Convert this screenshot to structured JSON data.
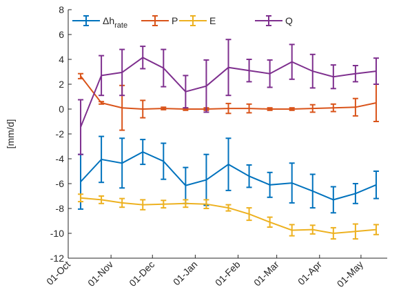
{
  "chart_data": {
    "type": "errorbar-line",
    "y_label": "[mm/d]",
    "xlim": [
      0,
      231
    ],
    "xticks": [
      {
        "value": 0,
        "label": "01-Oct"
      },
      {
        "value": 31,
        "label": "01-Nov"
      },
      {
        "value": 61,
        "label": "01-Dec"
      },
      {
        "value": 92,
        "label": "01-Jan"
      },
      {
        "value": 123,
        "label": "01-Feb"
      },
      {
        "value": 151,
        "label": "01-Mar"
      },
      {
        "value": 182,
        "label": "01-Apr"
      },
      {
        "value": 212,
        "label": "01-May"
      }
    ],
    "ylim": [
      -12,
      8
    ],
    "yticks": [
      -12,
      -10,
      -8,
      -6,
      -4,
      -2,
      0,
      2,
      4,
      6,
      8
    ],
    "x": [
      9,
      24,
      39,
      54,
      69,
      85,
      100,
      116,
      131,
      146,
      162,
      177,
      192,
      208,
      223
    ],
    "series": [
      {
        "name": "Δh",
        "name_sub": "rate",
        "color": "#0072BD",
        "values": [
          -5.85,
          -4.05,
          -4.35,
          -3.45,
          -4.2,
          -6.15,
          -5.7,
          -4.45,
          -5.4,
          -6.1,
          -5.95,
          -6.6,
          -7.3,
          -6.8,
          -6.1
        ],
        "errors": [
          2.2,
          1.85,
          2.0,
          1.0,
          1.45,
          1.45,
          2.05,
          2.1,
          0.9,
          1.0,
          1.6,
          1.35,
          1.05,
          0.8,
          1.1
        ]
      },
      {
        "name": "P",
        "color": "#D95319",
        "values": [
          2.65,
          0.5,
          0.1,
          0.0,
          0.05,
          0.0,
          0.0,
          0.05,
          0.05,
          0.0,
          0.0,
          0.05,
          0.1,
          0.15,
          0.5
        ],
        "errors": [
          0.2,
          0.1,
          1.8,
          0.7,
          0.1,
          0.1,
          0.1,
          0.4,
          0.35,
          0.1,
          0.1,
          0.3,
          0.3,
          0.7,
          1.5
        ]
      },
      {
        "name": "E",
        "color": "#EDB120",
        "values": [
          -7.15,
          -7.3,
          -7.55,
          -7.7,
          -7.65,
          -7.6,
          -7.65,
          -7.95,
          -8.45,
          -9.1,
          -9.75,
          -9.7,
          -10.0,
          -9.85,
          -9.7
        ],
        "errors": [
          0.3,
          0.3,
          0.35,
          0.4,
          0.3,
          0.3,
          0.35,
          0.25,
          0.5,
          0.4,
          0.45,
          0.35,
          0.45,
          0.6,
          0.4
        ]
      },
      {
        "name": "Q",
        "color": "#7E2F8E",
        "values": [
          -1.45,
          2.7,
          2.95,
          4.15,
          3.3,
          1.4,
          1.85,
          3.35,
          3.1,
          2.85,
          3.8,
          3.05,
          2.6,
          2.85,
          3.05
        ],
        "errors": [
          2.2,
          1.6,
          1.85,
          0.9,
          1.5,
          1.3,
          2.1,
          2.25,
          0.9,
          1.1,
          1.4,
          1.35,
          0.95,
          0.65,
          1.05
        ]
      }
    ]
  }
}
